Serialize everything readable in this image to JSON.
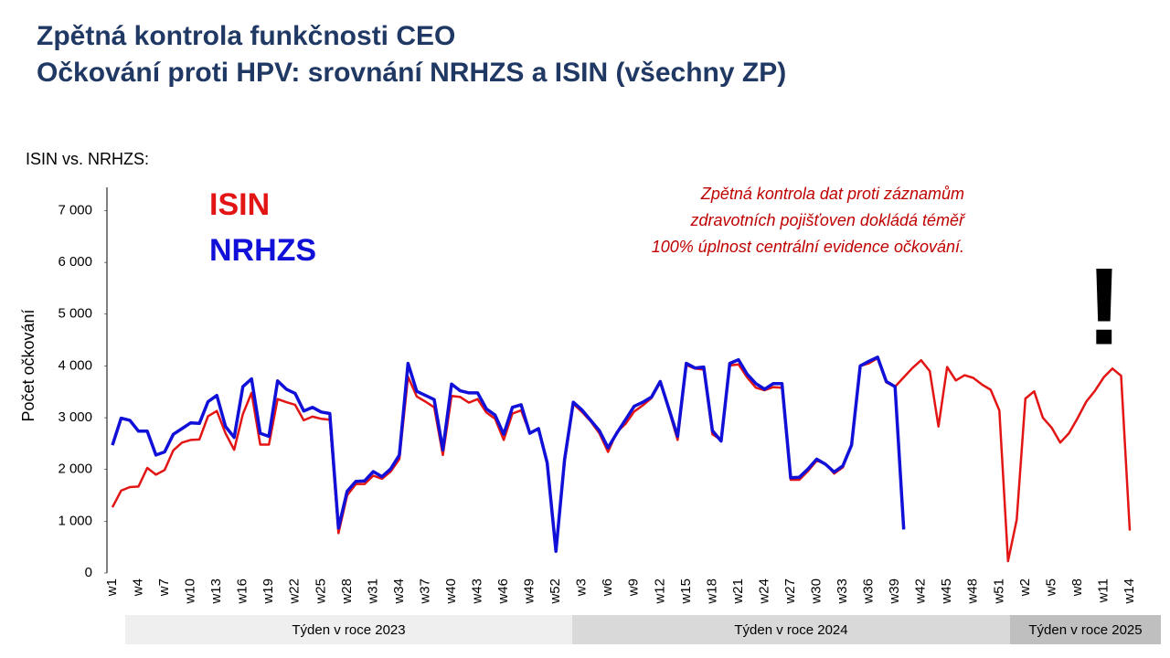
{
  "chart_data": {
    "type": "line",
    "title": "Zpětná kontrola funkčnosti CEO",
    "subtitle": "Očkování proti HPV: srovnání NRHZS a ISIN (všechny ZP)",
    "section_label": "ISIN vs. NRHZS:",
    "y_label": "Počet očkování",
    "annotation": [
      "Zpětná kontrola dat proti záznamům",
      "zdravotních pojišťoven dokládá téměř",
      "100% úplnost centrální evidence očkování."
    ],
    "alert": "!",
    "periods": [
      "Týden v roce 2023",
      "Týden v roce 2024",
      "Týden v roce 2025"
    ],
    "categories": [
      "w1",
      null,
      null,
      "w4",
      null,
      null,
      "w7",
      null,
      null,
      "w10",
      null,
      null,
      "w13",
      null,
      null,
      "w16",
      null,
      null,
      "w19",
      null,
      null,
      "w22",
      null,
      null,
      "w25",
      null,
      null,
      "w28",
      null,
      null,
      "w31",
      null,
      null,
      "w34",
      null,
      null,
      "w37",
      null,
      null,
      "w40",
      null,
      null,
      "w43",
      null,
      null,
      "w46",
      null,
      null,
      "w49",
      null,
      null,
      "w52",
      null,
      null,
      "w3",
      null,
      null,
      "w6",
      null,
      null,
      "w9",
      null,
      null,
      "w12",
      null,
      null,
      "w15",
      null,
      null,
      "w18",
      null,
      null,
      "w21",
      null,
      null,
      "w24",
      null,
      null,
      "w27",
      null,
      null,
      "w30",
      null,
      null,
      "w33",
      null,
      null,
      "w36",
      null,
      null,
      "w39",
      null,
      null,
      "w42",
      null,
      null,
      "w45",
      null,
      null,
      "w48",
      null,
      null,
      "w51",
      null,
      null,
      "w2",
      null,
      null,
      "w5",
      null,
      null,
      "w8",
      null,
      null,
      "w11",
      null,
      null,
      "w14"
    ],
    "series": [
      {
        "name": "ISIN",
        "color": "#e31414",
        "values": [
          1270,
          1590,
          1660,
          1670,
          2030,
          1900,
          1990,
          2370,
          2520,
          2570,
          2580,
          3030,
          3130,
          2700,
          2380,
          3070,
          3480,
          2480,
          2480,
          3360,
          3300,
          3250,
          2950,
          3020,
          2980,
          2960,
          770,
          1500,
          1720,
          1720,
          1880,
          1820,
          1960,
          2200,
          3790,
          3410,
          3310,
          3200,
          2280,
          3420,
          3400,
          3290,
          3360,
          3100,
          2980,
          2570,
          3080,
          3140,
          2700,
          2790,
          2120,
          450,
          2140,
          3270,
          3110,
          2930,
          2700,
          2340,
          2720,
          2880,
          3120,
          3240,
          3380,
          3680,
          3150,
          2570,
          4020,
          3950,
          3930,
          2680,
          2570,
          4010,
          4030,
          3780,
          3580,
          3530,
          3590,
          3580,
          1800,
          1800,
          1970,
          2170,
          2110,
          1920,
          2040,
          2470,
          4000,
          4050,
          4150,
          3680,
          3600,
          3780,
          3960,
          4110,
          3900,
          2830,
          3980,
          3720,
          3820,
          3770,
          3640,
          3540,
          3140,
          230,
          1030,
          3370,
          3510,
          3000,
          2810,
          2520,
          2700,
          2990,
          3310,
          3520,
          3780,
          3950,
          3810,
          820
        ]
      },
      {
        "name": "NRHZS",
        "color": "#1010d8",
        "values": [
          2470,
          2990,
          2950,
          2740,
          2740,
          2280,
          2340,
          2680,
          2790,
          2900,
          2890,
          3310,
          3430,
          2830,
          2620,
          3600,
          3750,
          2700,
          2640,
          3710,
          3550,
          3470,
          3130,
          3200,
          3110,
          3080,
          870,
          1580,
          1770,
          1780,
          1960,
          1860,
          2010,
          2280,
          4050,
          3510,
          3430,
          3350,
          2380,
          3650,
          3520,
          3480,
          3480,
          3170,
          3050,
          2680,
          3200,
          3250,
          2700,
          2790,
          2130,
          420,
          2200,
          3300,
          3150,
          2950,
          2750,
          2420,
          2700,
          2960,
          3220,
          3300,
          3400,
          3700,
          3170,
          2640,
          4050,
          3960,
          3980,
          2750,
          2550,
          4050,
          4120,
          3840,
          3660,
          3550,
          3660,
          3660,
          1840,
          1850,
          2010,
          2200,
          2100,
          1950,
          2070,
          2470,
          4000,
          4090,
          4170,
          3700,
          3600,
          840,
          null,
          null,
          null,
          null,
          null,
          null,
          null,
          null,
          null,
          null,
          null,
          null,
          null,
          null,
          null,
          null,
          null,
          null,
          null,
          null,
          null,
          null,
          null,
          null,
          null,
          null
        ]
      }
    ],
    "ylim": [
      0,
      7450
    ],
    "yticks": [
      0,
      {
        "value": 1000,
        "label": "1 000"
      },
      {
        "value": 2000,
        "label": "2 000"
      },
      {
        "value": 3000,
        "label": "3 000"
      },
      {
        "value": 4000,
        "label": "4 000"
      },
      {
        "value": 5000,
        "label": "5 000"
      },
      {
        "value": 6000,
        "label": "6 000"
      },
      {
        "value": 7000,
        "label": "7 000"
      }
    ]
  }
}
